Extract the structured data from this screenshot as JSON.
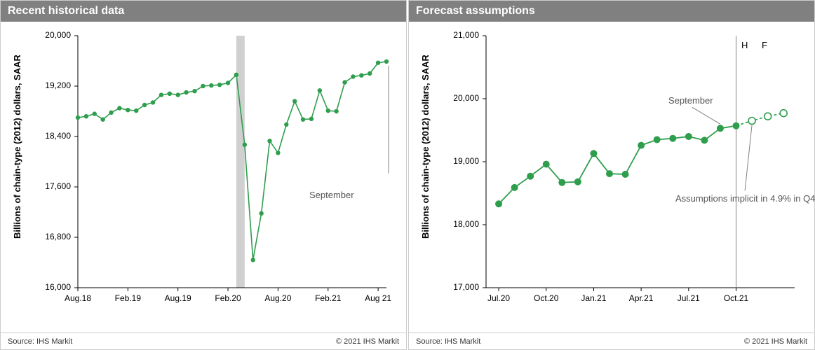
{
  "left": {
    "title": "Recent historical data",
    "ylabel": "Billions of chain-type (2012) dollars,\nSAAR",
    "ylim": [
      16000,
      20000
    ],
    "yticks": [
      16000,
      16800,
      17600,
      18400,
      19200,
      20000
    ],
    "ytick_labels": [
      "16,000",
      "16,800",
      "17,600",
      "18,400",
      "19,200",
      "20,000"
    ],
    "xticks_idx": [
      0,
      6,
      12,
      18,
      24,
      30,
      36
    ],
    "xtick_labels": [
      "Aug.18",
      "Feb.19",
      "Aug.19",
      "Feb.20",
      "Aug.20",
      "Feb.21",
      "Aug 21"
    ],
    "shaded_band": {
      "start_idx": 19,
      "end_idx": 20,
      "color": "#d0d0d0"
    },
    "series": {
      "values": [
        18700,
        18720,
        18760,
        18670,
        18780,
        18850,
        18820,
        18810,
        18900,
        18940,
        19060,
        19080,
        19060,
        19100,
        19120,
        19200,
        19210,
        19220,
        19250,
        19380,
        18270,
        16440,
        17180,
        18330,
        18140,
        18590,
        18960,
        18670,
        18680,
        19130,
        18810,
        18800,
        19260,
        19350,
        19370,
        19400,
        19570,
        19590
      ],
      "color": "#2e9e4d",
      "marker_size": 3.2,
      "line_width": 1.6
    },
    "annotation": {
      "text": "September",
      "line_to_idx": 37
    },
    "footer_left": "Source: IHS Markit",
    "footer_right": "© 2021 IHS Markit"
  },
  "right": {
    "title": "Forecast assumptions",
    "ylabel": "Billions of chain-type (2012) dollars,\nSAAR",
    "ylim": [
      17000,
      21000
    ],
    "yticks": [
      17000,
      18000,
      19000,
      20000,
      21000
    ],
    "ytick_labels": [
      "17,000",
      "18,000",
      "19,000",
      "20,000",
      "21,000"
    ],
    "xticks_idx": [
      0,
      3,
      6,
      9,
      12,
      15
    ],
    "xtick_labels": [
      "Jul.20",
      "Oct.20",
      "Jan.21",
      "Apr.21",
      "Jul.21",
      "Oct.21"
    ],
    "historical": {
      "values": [
        18330,
        18590,
        18770,
        18960,
        18670,
        18680,
        19130,
        18810,
        18800,
        19260,
        19350,
        19370,
        19400,
        19340,
        19530,
        19570
      ],
      "start_idx": 0,
      "color": "#2e9e4d",
      "marker_size": 5,
      "line_width": 1.8
    },
    "forecast": {
      "values": [
        19570,
        19650,
        19720,
        19770
      ],
      "start_idx": 15,
      "color": "#2e9e4d",
      "marker_size": 5,
      "line_width": 1.6,
      "dash": "4 3"
    },
    "vline_idx": 15,
    "h_f_labels": {
      "H": "H",
      "F": "F"
    },
    "annot1": {
      "text": "September",
      "line_to_idx": 14
    },
    "annot2": {
      "text": "Assumptions implicit\nin 4.9% in Q4",
      "line_to_idx": 16
    },
    "footer_left": "Source: IHS Markit",
    "footer_right": "© 2021 IHS Markit"
  },
  "colors": {
    "axis": "#000000",
    "annot_line": "#808080",
    "vline": "#808080"
  }
}
